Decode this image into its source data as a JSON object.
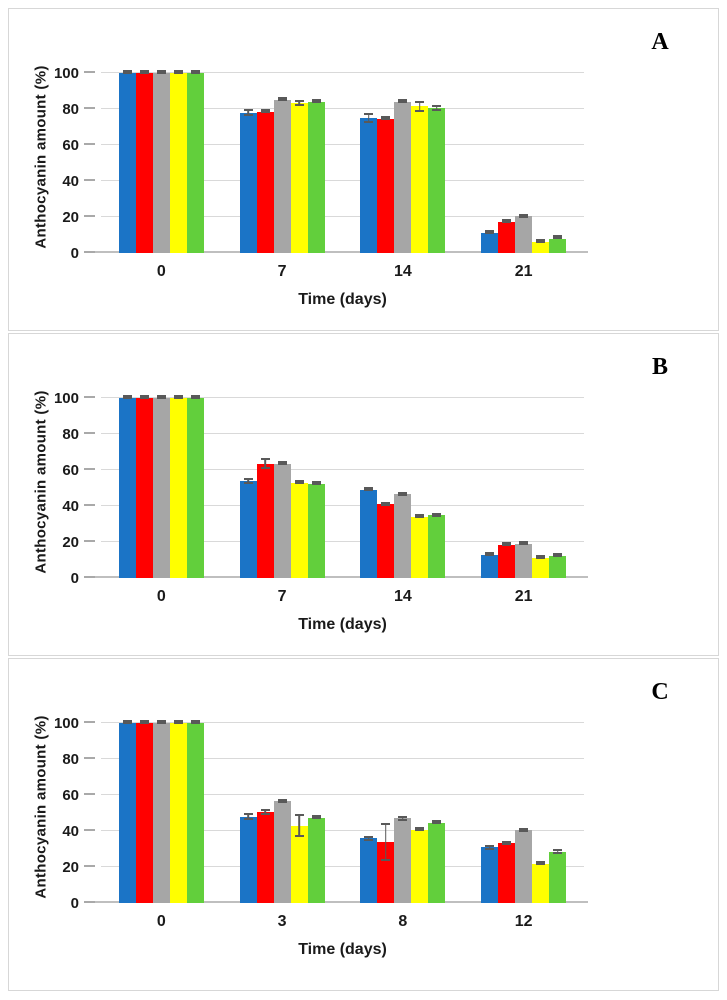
{
  "figure_title": "",
  "colors": {
    "panel_border": "#d7d7d7",
    "gridline": "#d9d9d9",
    "axis_line": "#bfbfbf",
    "error_bar": "#595959",
    "text": "#1a1a1a"
  },
  "chart_data": [
    {
      "type": "bar",
      "panel_label": "A",
      "title": "",
      "xlabel": "Time (days)",
      "ylabel": "Anthocyanin amount (%)",
      "ylim": [
        0,
        100
      ],
      "yticks": [
        0,
        20,
        40,
        60,
        80,
        100
      ],
      "grid": true,
      "legend": "none",
      "categories": [
        "0",
        "7",
        "14",
        "21"
      ],
      "series": [
        {
          "name": "blue",
          "color": "#1b74c6",
          "values": [
            100,
            78,
            75,
            11
          ],
          "errors": [
            0.4,
            2,
            3,
            0.7
          ]
        },
        {
          "name": "red",
          "color": "#ff0000",
          "values": [
            100,
            78.5,
            74.5,
            17.5
          ],
          "errors": [
            0.4,
            0.6,
            0.6,
            0.8
          ]
        },
        {
          "name": "gray",
          "color": "#a6a6a6",
          "values": [
            100,
            85,
            84,
            20.5
          ],
          "errors": [
            0.4,
            0.6,
            0.7,
            1
          ]
        },
        {
          "name": "yellow",
          "color": "#ffff00",
          "values": [
            100,
            83.5,
            81.5,
            6
          ],
          "errors": [
            0.4,
            1.7,
            3,
            0.4
          ]
        },
        {
          "name": "green",
          "color": "#62cf3c",
          "values": [
            100,
            84,
            80.5,
            8
          ],
          "errors": [
            0.4,
            0.6,
            1.5,
            0.4
          ]
        }
      ]
    },
    {
      "type": "bar",
      "panel_label": "B",
      "title": "",
      "xlabel": "Time (days)",
      "ylabel": "Anthocyanin amount (%)",
      "ylim": [
        0,
        100
      ],
      "yticks": [
        0,
        20,
        40,
        60,
        80,
        100
      ],
      "grid": true,
      "legend": "none",
      "categories": [
        "0",
        "7",
        "14",
        "21"
      ],
      "series": [
        {
          "name": "blue",
          "color": "#1b74c6",
          "values": [
            100,
            54,
            49,
            13
          ],
          "errors": [
            0.4,
            1.5,
            0.5,
            0.8
          ]
        },
        {
          "name": "red",
          "color": "#ff0000",
          "values": [
            100,
            63.5,
            41,
            18.5
          ],
          "errors": [
            0.4,
            3,
            1,
            0.7
          ]
        },
        {
          "name": "gray",
          "color": "#a6a6a6",
          "values": [
            100,
            63.5,
            46.5,
            19
          ],
          "errors": [
            0.4,
            0.7,
            0.8,
            0.8
          ]
        },
        {
          "name": "yellow",
          "color": "#ffff00",
          "values": [
            100,
            53,
            34,
            11
          ],
          "errors": [
            0.4,
            0.5,
            0.5,
            0.4
          ]
        },
        {
          "name": "green",
          "color": "#62cf3c",
          "values": [
            100,
            52.5,
            35,
            12
          ],
          "errors": [
            0.4,
            0.7,
            1.2,
            0.5
          ]
        }
      ]
    },
    {
      "type": "bar",
      "panel_label": "C",
      "title": "",
      "xlabel": "Time (days)",
      "ylabel": "Anthocyanin amount (%)",
      "ylim": [
        0,
        100
      ],
      "yticks": [
        0,
        20,
        40,
        60,
        80,
        100
      ],
      "grid": true,
      "legend": "none",
      "categories": [
        "0",
        "3",
        "8",
        "12"
      ],
      "series": [
        {
          "name": "blue",
          "color": "#1b74c6",
          "values": [
            100,
            48,
            36,
            31
          ],
          "errors": [
            0.4,
            2,
            1.5,
            1.3
          ]
        },
        {
          "name": "red",
          "color": "#ff0000",
          "values": [
            100,
            50.5,
            34,
            33.5
          ],
          "errors": [
            0.4,
            1.5,
            10.5,
            1
          ]
        },
        {
          "name": "gray",
          "color": "#a6a6a6",
          "values": [
            100,
            56.5,
            47,
            40.5
          ],
          "errors": [
            0.4,
            1.2,
            1.5,
            0.8
          ]
        },
        {
          "name": "yellow",
          "color": "#ffff00",
          "values": [
            100,
            43,
            40.5,
            21.5
          ],
          "errors": [
            0.4,
            6.5,
            0.4,
            0.4
          ]
        },
        {
          "name": "green",
          "color": "#62cf3c",
          "values": [
            100,
            47,
            44.5,
            28.5
          ],
          "errors": [
            0.4,
            0.5,
            0.5,
            1.5
          ]
        }
      ]
    }
  ]
}
